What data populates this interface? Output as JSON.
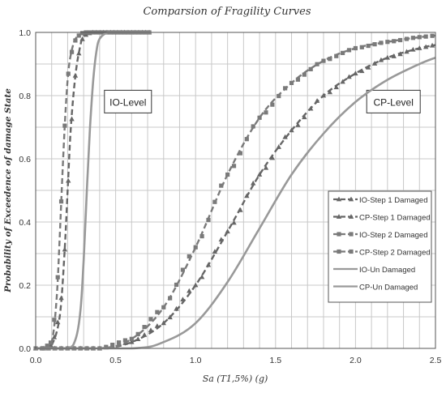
{
  "chart_data": {
    "type": "line",
    "title": "Comparsion of Fragility Curves",
    "xlabel": "Sa (T1,5%) (g)",
    "ylabel": "Probability of Exceedence of damage State",
    "xlim": [
      0.0,
      2.5
    ],
    "ylim": [
      0.0,
      1.0
    ],
    "x_ticks": [
      "0.0",
      "0.5",
      "1.0",
      "1.5",
      "2.0",
      "2.5"
    ],
    "y_ticks": [
      "0.0",
      "0.2",
      "0.4",
      "0.6",
      "0.8",
      "1.0"
    ],
    "grid": true,
    "legend_position": "right",
    "annotations": [
      "IO-Level",
      "CP-Level"
    ],
    "colors": {
      "dark_series": "#555555",
      "mid_series": "#7a7a7a",
      "light_series": "#9a9a9a",
      "grid": "#c8c8c8",
      "frame": "#555555"
    },
    "series": [
      {
        "name": "IO-Step 1 Damaged",
        "marker": "triangle",
        "dash": true,
        "color": "#666666",
        "x": [
          0.05,
          0.1,
          0.15,
          0.18,
          0.2,
          0.22,
          0.25,
          0.28,
          0.3,
          0.35,
          0.4,
          0.5,
          0.6,
          0.72
        ],
        "y": [
          0.0,
          0.01,
          0.1,
          0.3,
          0.5,
          0.7,
          0.87,
          0.96,
          0.99,
          1.0,
          1.0,
          1.0,
          1.0,
          1.0
        ]
      },
      {
        "name": "CP-Step 1 Damaged",
        "marker": "triangle",
        "dash": true,
        "color": "#666666",
        "x": [
          0.0,
          0.4,
          0.6,
          0.8,
          1.0,
          1.2,
          1.4,
          1.6,
          1.8,
          2.0,
          2.2,
          2.4,
          2.5
        ],
        "y": [
          0.0,
          0.0,
          0.02,
          0.08,
          0.2,
          0.37,
          0.55,
          0.69,
          0.8,
          0.87,
          0.92,
          0.95,
          0.96
        ]
      },
      {
        "name": "IO-Step 2 Damaged",
        "marker": "square",
        "dash": true,
        "color": "#7a7a7a",
        "x": [
          0.05,
          0.1,
          0.13,
          0.15,
          0.17,
          0.19,
          0.21,
          0.24,
          0.27,
          0.3,
          0.35,
          0.4,
          0.5,
          0.6,
          0.72
        ],
        "y": [
          0.0,
          0.02,
          0.15,
          0.35,
          0.58,
          0.78,
          0.9,
          0.97,
          0.99,
          1.0,
          1.0,
          1.0,
          1.0,
          1.0,
          1.0
        ]
      },
      {
        "name": "CP-Step 2 Damaged",
        "marker": "square",
        "dash": true,
        "color": "#7a7a7a",
        "x": [
          0.0,
          0.4,
          0.6,
          0.8,
          1.0,
          1.2,
          1.4,
          1.6,
          1.8,
          2.0,
          2.2,
          2.4,
          2.5
        ],
        "y": [
          0.0,
          0.0,
          0.03,
          0.13,
          0.32,
          0.55,
          0.73,
          0.84,
          0.91,
          0.95,
          0.97,
          0.985,
          0.99
        ]
      },
      {
        "name": "IO-Un Damaged",
        "marker": "none",
        "dash": false,
        "color": "#999999",
        "x": [
          0.05,
          0.2,
          0.25,
          0.28,
          0.3,
          0.32,
          0.34,
          0.36,
          0.38,
          0.4,
          0.45,
          0.5,
          0.6,
          0.72
        ],
        "y": [
          0.0,
          0.0,
          0.03,
          0.12,
          0.28,
          0.5,
          0.7,
          0.85,
          0.94,
          0.98,
          1.0,
          1.0,
          1.0,
          1.0
        ]
      },
      {
        "name": "CP-Un Damaged",
        "marker": "none",
        "dash": false,
        "color": "#999999",
        "x": [
          0.0,
          0.6,
          0.8,
          1.0,
          1.2,
          1.4,
          1.6,
          1.8,
          2.0,
          2.2,
          2.4,
          2.5
        ],
        "y": [
          0.0,
          0.0,
          0.02,
          0.08,
          0.21,
          0.38,
          0.55,
          0.68,
          0.78,
          0.85,
          0.9,
          0.92
        ]
      }
    ]
  }
}
